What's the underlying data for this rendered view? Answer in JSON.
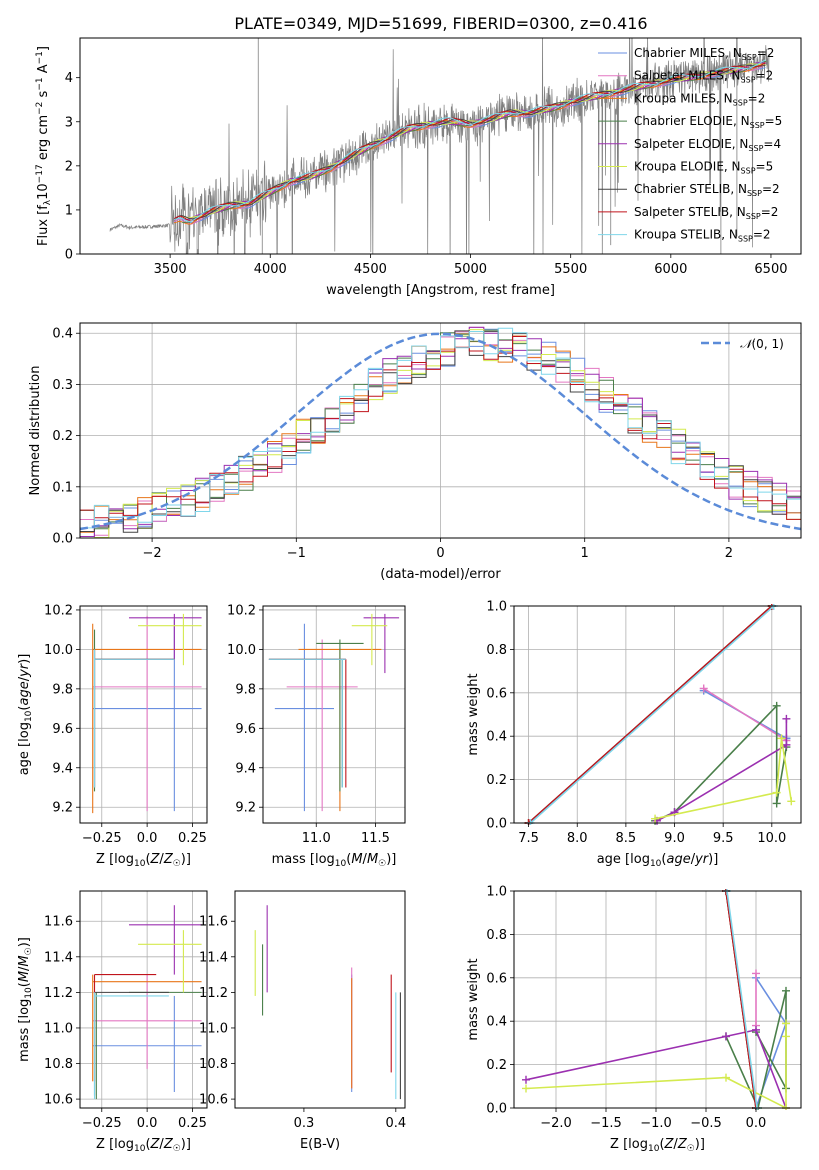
{
  "title": "PLATE=0349, MJD=51699, FIBERID=0300, z=0.416",
  "colors": {
    "Chabrier MILES": "#6a8fe0",
    "Salpeter MILES": "#e377c2",
    "Kroupa MILES": "#e8761a",
    "Chabrier ELODIE": "#4a7f4a",
    "Salpeter ELODIE": "#9b30b0",
    "Kroupa ELODIE": "#d4ea4f",
    "Chabrier STELIB": "#444444",
    "Salpeter STELIB": "#c0141c",
    "Kroupa STELIB": "#7fd6ea",
    "data": "#808080",
    "gauss": "#5b8bd8"
  },
  "legend": [
    {
      "key": "Chabrier MILES",
      "label": "Chabrier MILES, N",
      "sub": "SSP",
      "tail": "=2"
    },
    {
      "key": "Salpeter MILES",
      "label": "Salpeter MILES, N",
      "sub": "SSP",
      "tail": "=2"
    },
    {
      "key": "Kroupa MILES",
      "label": "Kroupa MILES, N",
      "sub": "SSP",
      "tail": "=2"
    },
    {
      "key": "Chabrier ELODIE",
      "label": "Chabrier ELODIE, N",
      "sub": "SSP",
      "tail": "=5"
    },
    {
      "key": "Salpeter ELODIE",
      "label": "Salpeter ELODIE, N",
      "sub": "SSP",
      "tail": "=4"
    },
    {
      "key": "Kroupa ELODIE",
      "label": "Kroupa ELODIE, N",
      "sub": "SSP",
      "tail": "=5"
    },
    {
      "key": "Chabrier STELIB",
      "label": "Chabrier STELIB, N",
      "sub": "SSP",
      "tail": "=2"
    },
    {
      "key": "Salpeter STELIB",
      "label": "Salpeter STELIB, N",
      "sub": "SSP",
      "tail": "=2"
    },
    {
      "key": "Kroupa STELIB",
      "label": "Kroupa STELIB, N",
      "sub": "SSP",
      "tail": "=2"
    }
  ],
  "chart_data": [
    {
      "type": "line",
      "id": "spectrum",
      "xlabel": "wavelength [Angstrom, rest frame]",
      "ylabel": "Flux [fλ 10^-17 erg cm^-2 s^-1 A^-1]",
      "xlim": [
        3050,
        6650
      ],
      "ylim": [
        0,
        4.9
      ],
      "xticks": [
        3500,
        4000,
        4500,
        5000,
        5500,
        6000,
        6500
      ],
      "yticks": [
        0,
        1,
        2,
        3,
        4
      ],
      "grid": false,
      "legend_position": "top-right",
      "series": [
        {
          "name": "data",
          "x": [
            3200,
            3250,
            3300,
            3400,
            3500,
            3550,
            3600,
            3700,
            3800,
            3900,
            4000,
            4100,
            4200,
            4300,
            4400,
            4500,
            4600,
            4700,
            4800,
            4900,
            5000,
            5100,
            5200,
            5300,
            5400,
            5500,
            5600,
            5700,
            5800,
            5900,
            6000,
            6100,
            6200,
            6300,
            6400,
            6500
          ],
          "y": [
            0.55,
            0.65,
            0.6,
            0.62,
            0.65,
            0.8,
            0.75,
            0.95,
            1.1,
            1.15,
            1.4,
            1.65,
            1.75,
            1.95,
            2.2,
            2.45,
            2.65,
            2.85,
            2.95,
            3.0,
            2.95,
            3.05,
            3.2,
            3.2,
            3.3,
            3.45,
            3.55,
            3.65,
            3.75,
            3.85,
            3.95,
            4.0,
            4.1,
            4.15,
            4.25,
            4.35
          ]
        }
      ]
    },
    {
      "type": "bar",
      "id": "residuals",
      "xlabel": "(data-model)/error",
      "ylabel": "Normed distribution",
      "xlim": [
        -2.5,
        2.5
      ],
      "ylim": [
        0,
        0.42
      ],
      "xticks": [
        -2,
        -1,
        0,
        1,
        2
      ],
      "yticks": [
        0.0,
        0.1,
        0.2,
        0.3,
        0.4
      ],
      "grid": true,
      "legend_position": "top-right",
      "gauss_label": "N(0,1)"
    },
    {
      "type": "scatter",
      "id": "age-Z",
      "xlabel": "Z [log10(Z/Zsun)]",
      "ylabel": "age  [log10(age/yr)]",
      "xlim": [
        -0.37,
        0.33
      ],
      "ylim": [
        9.12,
        10.22
      ],
      "xticks": [
        -0.25,
        0.0,
        0.25
      ],
      "yticks": [
        9.2,
        9.4,
        9.6,
        9.8,
        10.0,
        10.2
      ],
      "grid": true,
      "points": [
        {
          "key": "Chabrier MILES",
          "x": 0.15,
          "y": 9.7,
          "xe": [
            -0.3,
            0.3
          ],
          "ye": [
            9.18,
            10.15
          ]
        },
        {
          "key": "Salpeter MILES",
          "x": 0.0,
          "y": 9.81,
          "xe": [
            -0.3,
            0.3
          ],
          "ye": [
            9.18,
            10.17
          ]
        },
        {
          "key": "Kroupa MILES",
          "x": -0.3,
          "y": 10.0,
          "xe": [
            -0.3,
            0.3
          ],
          "ye": [
            9.17,
            10.13
          ]
        },
        {
          "key": "Chabrier ELODIE",
          "x": -0.29,
          "y": 9.95,
          "xe": [
            -0.29,
            0.15
          ],
          "ye": [
            9.28,
            10.1
          ]
        },
        {
          "key": "Salpeter ELODIE",
          "x": 0.15,
          "y": 10.16,
          "xe": [
            -0.1,
            0.3
          ],
          "ye": [
            9.95,
            10.18
          ]
        },
        {
          "key": "Kroupa ELODIE",
          "x": 0.2,
          "y": 10.12,
          "xe": [
            -0.05,
            0.3
          ],
          "ye": [
            9.92,
            10.18
          ]
        },
        {
          "key": "Chabrier STELIB",
          "x": -0.29,
          "y": 9.95,
          "xe": [
            -0.29,
            0.15
          ],
          "ye": [
            9.3,
            10.0
          ]
        },
        {
          "key": "Salpeter STELIB",
          "x": -0.29,
          "y": 9.95,
          "xe": [
            -0.29,
            0.15
          ],
          "ye": [
            9.3,
            10.0
          ]
        },
        {
          "key": "Kroupa STELIB",
          "x": -0.29,
          "y": 9.95,
          "xe": [
            -0.29,
            0.15
          ],
          "ye": [
            9.3,
            10.0
          ]
        }
      ]
    },
    {
      "type": "scatter",
      "id": "age-mass",
      "xlabel": "mass [log10(M/Msun)]",
      "ylabel": "",
      "xlim": [
        10.55,
        11.75
      ],
      "ylim": [
        9.12,
        10.22
      ],
      "xticks": [
        11.0,
        11.5
      ],
      "yticks": [
        9.2,
        9.4,
        9.6,
        9.8,
        10.0,
        10.2
      ],
      "grid": true,
      "points": [
        {
          "key": "Chabrier MILES",
          "x": 10.9,
          "y": 9.7,
          "xe": [
            10.65,
            11.15
          ],
          "ye": [
            9.18,
            10.13
          ]
        },
        {
          "key": "Salpeter MILES",
          "x": 11.05,
          "y": 9.81,
          "xe": [
            10.75,
            11.35
          ],
          "ye": [
            9.18,
            10.05
          ]
        },
        {
          "key": "Kroupa MILES",
          "x": 11.2,
          "y": 10.0,
          "xe": [
            10.85,
            11.55
          ],
          "ye": [
            9.18,
            10.0
          ]
        },
        {
          "key": "Chabrier ELODIE",
          "x": 11.2,
          "y": 10.03,
          "xe": [
            11.0,
            11.4
          ],
          "ye": [
            9.28,
            10.05
          ]
        },
        {
          "key": "Salpeter ELODIE",
          "x": 11.58,
          "y": 10.16,
          "xe": [
            11.4,
            11.7
          ],
          "ye": [
            9.88,
            10.18
          ]
        },
        {
          "key": "Kroupa ELODIE",
          "x": 11.47,
          "y": 10.12,
          "xe": [
            11.3,
            11.6
          ],
          "ye": [
            9.92,
            10.18
          ]
        },
        {
          "key": "Chabrier STELIB",
          "x": 11.22,
          "y": 9.95,
          "xe": [
            10.6,
            11.25
          ],
          "ye": [
            9.3,
            9.95
          ]
        },
        {
          "key": "Salpeter STELIB",
          "x": 11.25,
          "y": 9.95,
          "xe": [
            10.6,
            11.25
          ],
          "ye": [
            9.3,
            9.95
          ]
        },
        {
          "key": "Kroupa STELIB",
          "x": 11.22,
          "y": 9.95,
          "xe": [
            10.6,
            11.25
          ],
          "ye": [
            9.3,
            9.95
          ]
        }
      ]
    },
    {
      "type": "line",
      "id": "weight-age",
      "xlabel": "age  [log10(age/yr)]",
      "ylabel": "mass weight",
      "xlim": [
        7.35,
        10.3
      ],
      "ylim": [
        0,
        1
      ],
      "xticks": [
        7.5,
        8.0,
        8.5,
        9.0,
        9.5,
        10.0
      ],
      "yticks": [
        0.0,
        0.2,
        0.4,
        0.6,
        0.8,
        1.0
      ],
      "grid": true,
      "series": [
        {
          "key": "Chabrier MILES",
          "x": [
            10.15,
            9.3,
            10.15
          ],
          "y": [
            0.39,
            0.61,
            0.39
          ]
        },
        {
          "key": "Salpeter MILES",
          "x": [
            9.3,
            10.15
          ],
          "y": [
            0.62,
            0.38
          ]
        },
        {
          "key": "Kroupa MILES",
          "x": [
            7.5,
            10.0
          ],
          "y": [
            0.0,
            1.0
          ]
        },
        {
          "key": "Chabrier ELODIE",
          "x": [
            8.8,
            9.0,
            10.05,
            10.05,
            10.15
          ],
          "y": [
            0.01,
            0.05,
            0.54,
            0.09,
            0.35
          ]
        },
        {
          "key": "Salpeter ELODIE",
          "x": [
            8.82,
            9.0,
            10.15,
            10.15
          ],
          "y": [
            0.01,
            0.05,
            0.36,
            0.48
          ]
        },
        {
          "key": "Kroupa ELODIE",
          "x": [
            8.8,
            10.05,
            10.1,
            10.2
          ],
          "y": [
            0.02,
            0.14,
            0.39,
            0.1
          ]
        },
        {
          "key": "Chabrier STELIB",
          "x": [
            7.5,
            10.0
          ],
          "y": [
            0.0,
            1.0
          ]
        },
        {
          "key": "Salpeter STELIB",
          "x": [
            7.5,
            10.0
          ],
          "y": [
            0.0,
            1.0
          ]
        },
        {
          "key": "Kroupa STELIB",
          "x": [
            7.52,
            10.02
          ],
          "y": [
            0.0,
            1.0
          ]
        }
      ]
    },
    {
      "type": "scatter",
      "id": "mass-Z",
      "xlabel": "Z [log10(Z/Zsun)]",
      "ylabel": "mass [log10(M/Msun)]",
      "xlim": [
        -0.37,
        0.33
      ],
      "ylim": [
        10.55,
        11.77
      ],
      "xticks": [
        -0.25,
        0.0,
        0.25
      ],
      "yticks": [
        10.6,
        10.8,
        11.0,
        11.2,
        11.4,
        11.6
      ],
      "grid": true,
      "points": [
        {
          "key": "Chabrier MILES",
          "x": 0.15,
          "y": 10.9,
          "xe": [
            -0.3,
            0.3
          ],
          "ye": [
            10.64,
            11.18
          ]
        },
        {
          "key": "Salpeter MILES",
          "x": 0.0,
          "y": 11.04,
          "xe": [
            -0.3,
            0.3
          ],
          "ye": [
            10.77,
            11.3
          ]
        },
        {
          "key": "Kroupa MILES",
          "x": -0.3,
          "y": 11.26,
          "xe": [
            -0.3,
            0.3
          ],
          "ye": [
            10.7,
            11.3
          ]
        },
        {
          "key": "Chabrier ELODIE",
          "x": -0.28,
          "y": 11.2,
          "xe": [
            -0.1,
            0.3
          ],
          "ye": [
            10.6,
            11.2
          ]
        },
        {
          "key": "Salpeter ELODIE",
          "x": 0.15,
          "y": 11.58,
          "xe": [
            -0.1,
            0.3
          ],
          "ye": [
            11.3,
            11.69
          ]
        },
        {
          "key": "Kroupa ELODIE",
          "x": 0.2,
          "y": 11.47,
          "xe": [
            -0.05,
            0.3
          ],
          "ye": [
            11.2,
            11.55
          ]
        },
        {
          "key": "Chabrier STELIB",
          "x": -0.29,
          "y": 11.2,
          "xe": [
            -0.29,
            0.12
          ],
          "ye": [
            10.62,
            11.2
          ]
        },
        {
          "key": "Salpeter STELIB",
          "x": -0.29,
          "y": 11.3,
          "xe": [
            -0.29,
            0.05
          ],
          "ye": [
            10.7,
            11.3
          ]
        },
        {
          "key": "Kroupa STELIB",
          "x": -0.29,
          "y": 11.18,
          "xe": [
            -0.29,
            0.12
          ],
          "ye": [
            10.6,
            11.2
          ]
        }
      ]
    },
    {
      "type": "scatter",
      "id": "mass-EBV",
      "xlabel": "E(B-V)",
      "ylabel": "",
      "xlim": [
        0.225,
        0.41
      ],
      "ylim": [
        10.55,
        11.77
      ],
      "xticks": [
        0.3,
        0.4
      ],
      "yticks": [
        10.6,
        10.8,
        11.0,
        11.2,
        11.4,
        11.6
      ],
      "grid": false,
      "points": [
        {
          "key": "Kroupa ELODIE",
          "x": 0.247,
          "y": 11.35,
          "ye": [
            11.18,
            11.55
          ]
        },
        {
          "key": "Chabrier ELODIE",
          "x": 0.255,
          "y": 11.25,
          "ye": [
            11.07,
            11.47
          ]
        },
        {
          "key": "Salpeter ELODIE",
          "x": 0.26,
          "y": 11.5,
          "ye": [
            11.2,
            11.69
          ]
        },
        {
          "key": "Chabrier MILES",
          "x": 0.352,
          "y": 10.95,
          "ye": [
            10.64,
            11.3
          ]
        },
        {
          "key": "Salpeter MILES",
          "x": 0.352,
          "y": 11.05,
          "ye": [
            10.66,
            11.34
          ]
        },
        {
          "key": "Kroupa MILES",
          "x": 0.352,
          "y": 11.0,
          "ye": [
            10.66,
            11.28
          ]
        },
        {
          "key": "Salpeter STELIB",
          "x": 0.395,
          "y": 11.0,
          "ye": [
            10.75,
            11.3
          ]
        },
        {
          "key": "Kroupa STELIB",
          "x": 0.4,
          "y": 10.9,
          "ye": [
            10.6,
            11.2
          ]
        },
        {
          "key": "Chabrier STELIB",
          "x": 0.405,
          "y": 10.9,
          "ye": [
            10.6,
            11.2
          ]
        }
      ]
    },
    {
      "type": "line",
      "id": "weight-Z",
      "xlabel": "Z [log10(Z/Zsun)]",
      "ylabel": "mass weight",
      "xlim": [
        -2.42,
        0.45
      ],
      "ylim": [
        0,
        1
      ],
      "xticks": [
        -2.0,
        -1.5,
        -1.0,
        -0.5,
        0.0
      ],
      "yticks": [
        0.0,
        0.2,
        0.4,
        0.6,
        0.8,
        1.0
      ],
      "grid": true,
      "series": [
        {
          "key": "Chabrier MILES",
          "x": [
            0.0,
            0.3,
            0.0
          ],
          "y": [
            0.6,
            0.39,
            0.0
          ]
        },
        {
          "key": "Salpeter MILES",
          "x": [
            0.0,
            0.0
          ],
          "y": [
            0.62,
            0.38
          ]
        },
        {
          "key": "Kroupa MILES",
          "x": [
            -0.3,
            0.0
          ],
          "y": [
            1.0,
            0.0
          ]
        },
        {
          "key": "Chabrier ELODIE",
          "x": [
            -0.3,
            0.02,
            0.3,
            0.3,
            0.0
          ],
          "y": [
            0.33,
            0.0,
            0.54,
            0.09,
            0.35
          ]
        },
        {
          "key": "Salpeter ELODIE",
          "x": [
            -2.3,
            -0.3,
            0.0,
            0.3
          ],
          "y": [
            0.13,
            0.33,
            0.36,
            0.0
          ]
        },
        {
          "key": "Kroupa ELODIE",
          "x": [
            -2.3,
            -0.3,
            0.3,
            0.3,
            0.3
          ],
          "y": [
            0.09,
            0.14,
            0.0,
            0.39,
            0.33
          ]
        },
        {
          "key": "Chabrier STELIB",
          "x": [
            -0.3,
            0.0
          ],
          "y": [
            1.0,
            0.0
          ]
        },
        {
          "key": "Salpeter STELIB",
          "x": [
            -0.3,
            0.0
          ],
          "y": [
            1.0,
            0.0
          ]
        },
        {
          "key": "Kroupa STELIB",
          "x": [
            -0.29,
            0.01
          ],
          "y": [
            1.0,
            0.0
          ]
        }
      ]
    }
  ]
}
